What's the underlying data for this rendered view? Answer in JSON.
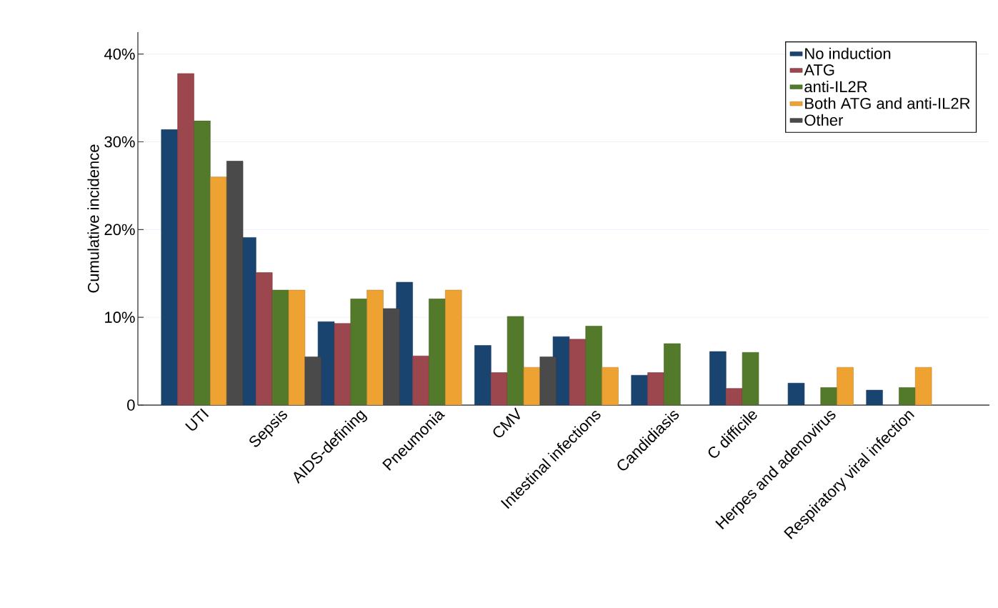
{
  "chart_data": {
    "type": "bar",
    "ylabel": "Cumulative incidence",
    "categories": [
      "UTI",
      "Sepsis",
      "AIDS-defining",
      "Pneumonia",
      "CMV",
      "Intestinal infections",
      "Candidiasis",
      "C difficile",
      "Herpes and adenovirus",
      "Respiratory viral infection"
    ],
    "series": [
      {
        "name": "No induction",
        "color": "#1a4470",
        "values": [
          31.4,
          19.1,
          9.5,
          14.0,
          6.8,
          7.8,
          3.4,
          6.1,
          2.5,
          1.7
        ]
      },
      {
        "name": "ATG",
        "color": "#9c464d",
        "values": [
          37.8,
          15.1,
          9.3,
          5.6,
          3.7,
          7.5,
          3.7,
          1.9,
          null,
          null
        ]
      },
      {
        "name": "anti-IL2R",
        "color": "#537a2a",
        "values": [
          32.4,
          13.1,
          12.1,
          12.1,
          10.1,
          9.0,
          7.0,
          6.0,
          2.0,
          2.0
        ]
      },
      {
        "name": "Both ATG and anti-IL2R",
        "color": "#eda232",
        "values": [
          26.0,
          13.1,
          13.1,
          13.1,
          4.3,
          4.3,
          null,
          null,
          4.3,
          4.3
        ]
      },
      {
        "name": "Other",
        "color": "#4a4a4a",
        "values": [
          27.8,
          5.5,
          11.0,
          null,
          5.5,
          null,
          null,
          null,
          null,
          null
        ]
      }
    ],
    "ylim": [
      0,
      42.5
    ],
    "yticks": [
      0,
      {
        "value": 10,
        "label": "10%"
      },
      {
        "value": 20,
        "label": "20%"
      },
      {
        "value": 30,
        "label": "30%"
      },
      {
        "value": 40,
        "label": "40%"
      }
    ],
    "grid": "y",
    "legend": "top right"
  }
}
